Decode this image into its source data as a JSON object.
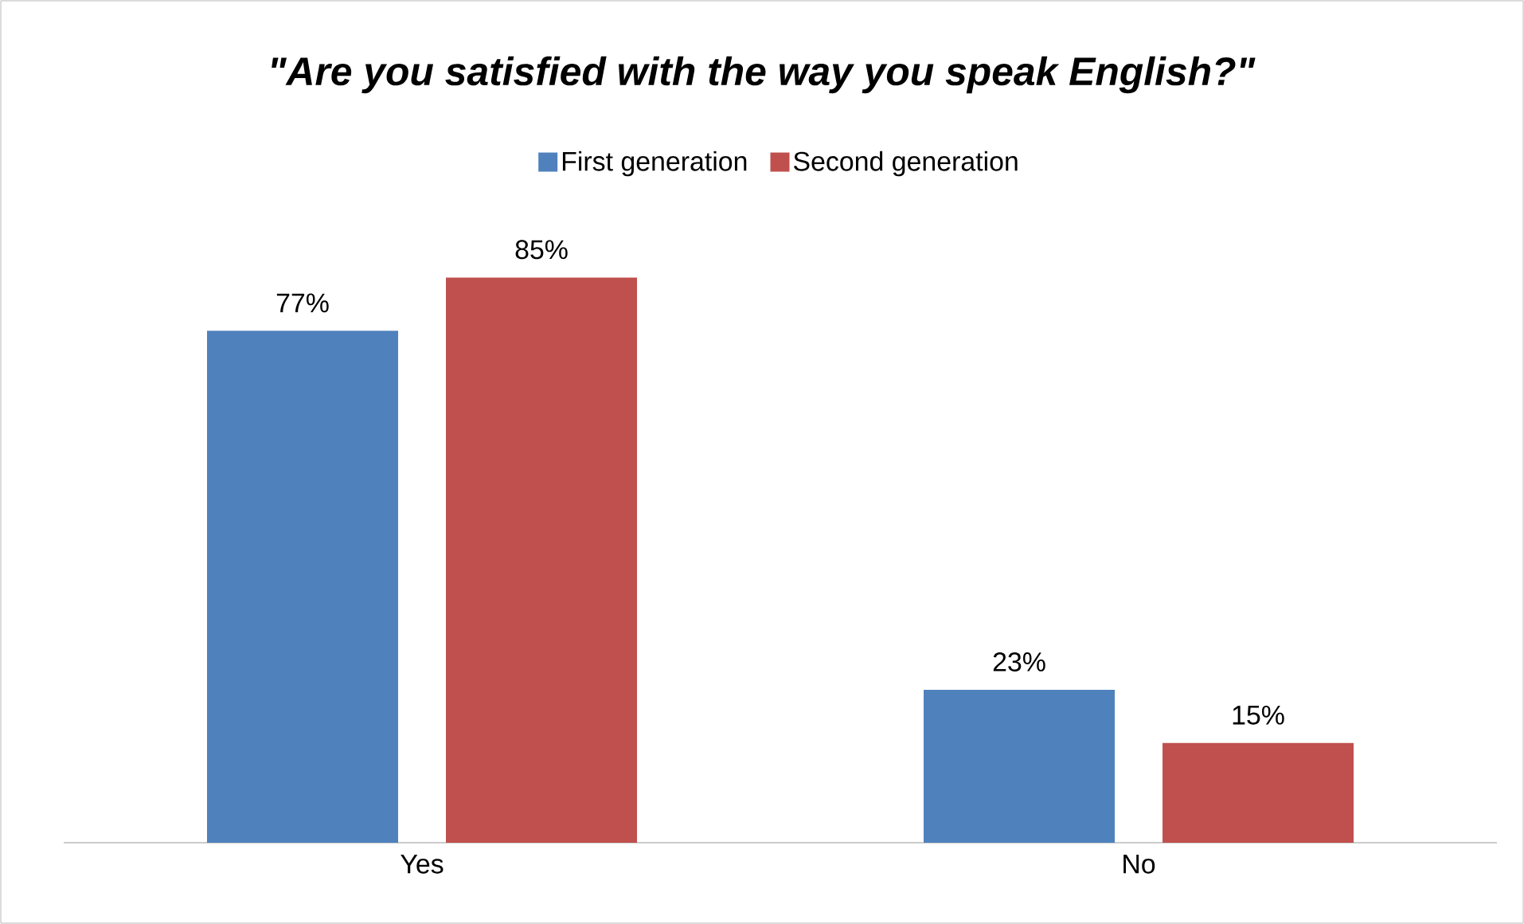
{
  "chart_data": {
    "type": "bar",
    "title": "\"Are you satisfied with the way you speak English?\"",
    "categories": [
      "Yes",
      "No"
    ],
    "legend": "top",
    "tick_labels": "x",
    "series": [
      {
        "name": "First generation",
        "color": "#4f81bd",
        "values": [
          77,
          23
        ],
        "value_labels": [
          "77%",
          "23%"
        ]
      },
      {
        "name": "Second generation",
        "color": "#c0504d",
        "values": [
          85,
          15
        ],
        "value_labels": [
          "85%",
          "15%"
        ]
      }
    ]
  }
}
